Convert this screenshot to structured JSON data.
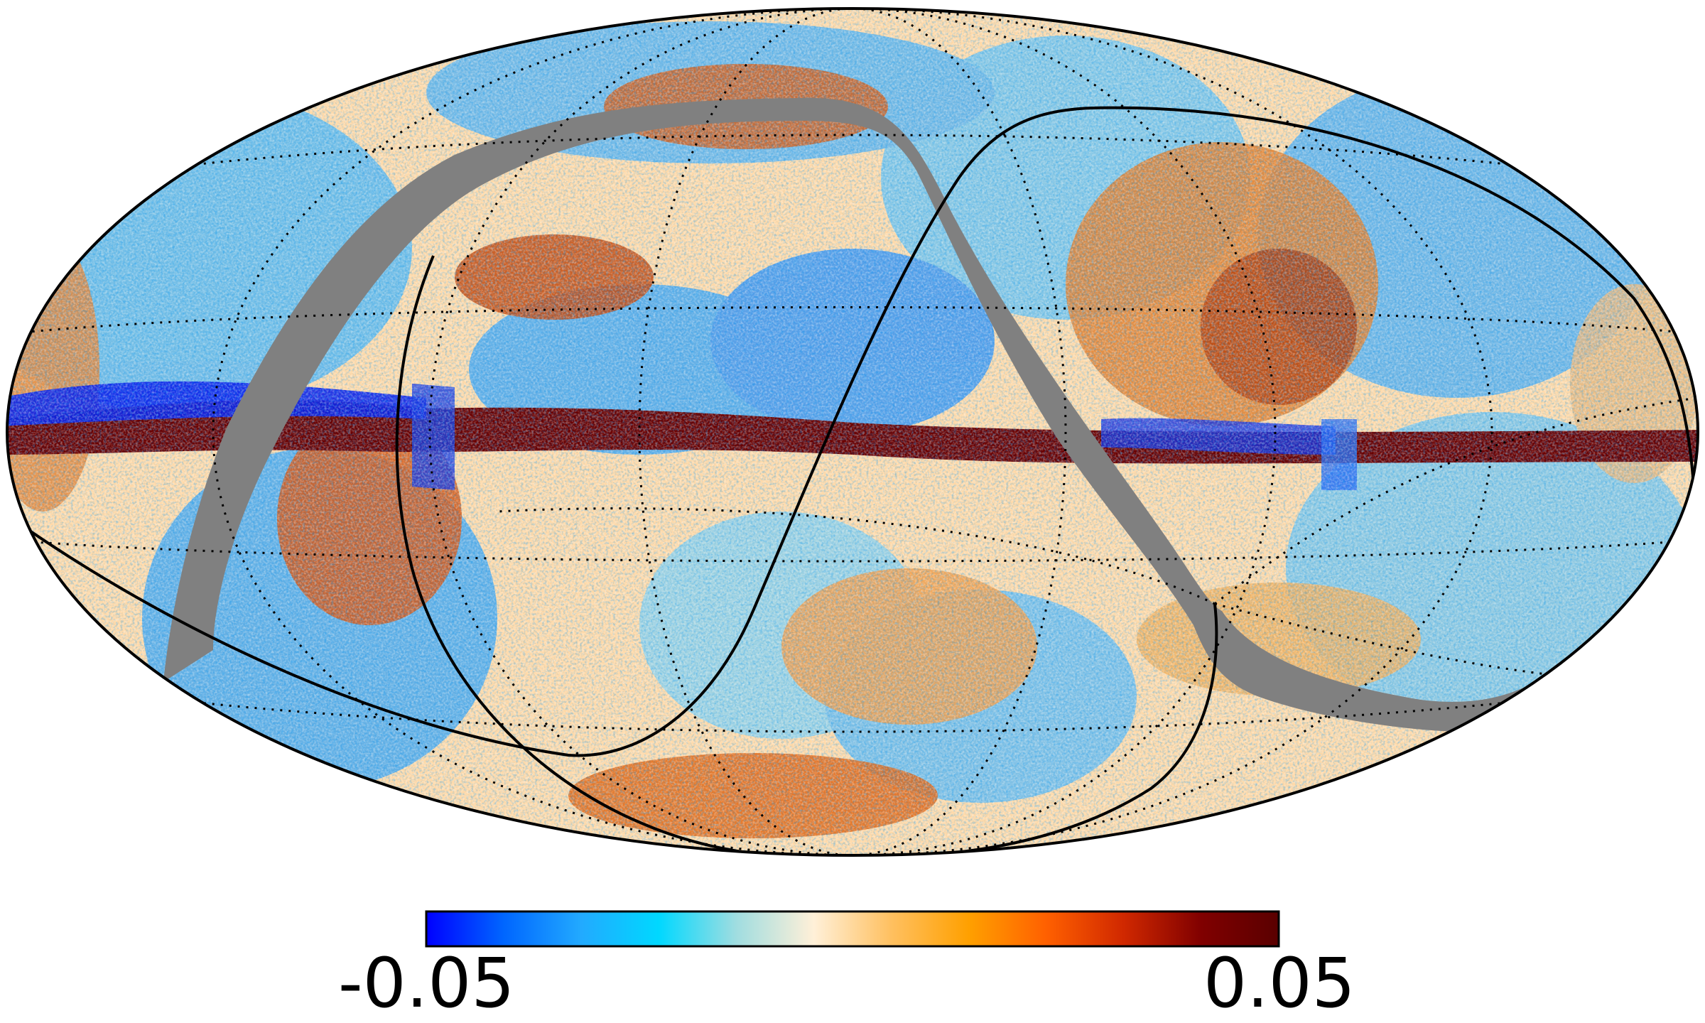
{
  "map": {
    "projection": "mollweide",
    "background_color": "#ffffff",
    "mask_color": "#808080",
    "outline_color": "#000000"
  },
  "colorbar": {
    "min_label": "-0.05",
    "max_label": "0.05",
    "min_value": -0.05,
    "max_value": 0.05,
    "colors": [
      "#0000ff",
      "#0066ff",
      "#22aaff",
      "#00d8ff",
      "#a0dde0",
      "#fff0d8",
      "#ffc060",
      "#ffa000",
      "#ff6000",
      "#d02800",
      "#800000",
      "#5a0000"
    ]
  }
}
